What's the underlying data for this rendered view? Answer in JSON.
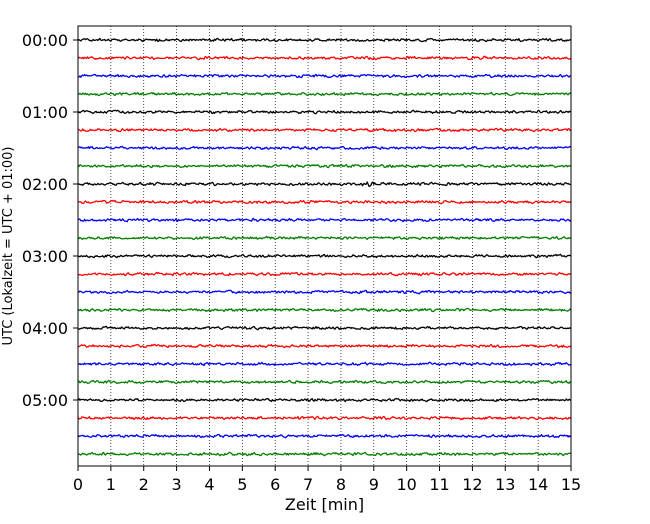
{
  "chart_data": {
    "type": "line",
    "xlabel": "Zeit  [min]",
    "ylabel": "UTC (Lokalzeit = UTC + 01:00)",
    "xlim": [
      0,
      15
    ],
    "x_ticks": [
      0,
      1,
      2,
      3,
      4,
      5,
      6,
      7,
      8,
      9,
      10,
      11,
      12,
      13,
      14,
      15
    ],
    "x_tick_labels": [
      "0",
      "1",
      "2",
      "3",
      "4",
      "5",
      "6",
      "7",
      "8",
      "9",
      "10",
      "11",
      "12",
      "13",
      "14",
      "15"
    ],
    "y_tick_labels": [
      "00:00",
      "01:00",
      "02:00",
      "03:00",
      "04:00",
      "05:00"
    ],
    "y_tick_trace_index": [
      0,
      4,
      8,
      12,
      16,
      20
    ],
    "trace_count": 24,
    "trace_minutes": 15,
    "trace_colors": [
      "#000000",
      "#ff0000",
      "#0000ff",
      "#008000"
    ],
    "x_grid": "dotted vertical lines at every minute",
    "grid": true,
    "traces": [
      {
        "start": "00:00",
        "color": "#000000"
      },
      {
        "start": "00:15",
        "color": "#ff0000"
      },
      {
        "start": "00:30",
        "color": "#0000ff"
      },
      {
        "start": "00:45",
        "color": "#008000"
      },
      {
        "start": "01:00",
        "color": "#000000"
      },
      {
        "start": "01:15",
        "color": "#ff0000"
      },
      {
        "start": "01:30",
        "color": "#0000ff"
      },
      {
        "start": "01:45",
        "color": "#008000"
      },
      {
        "start": "02:00",
        "color": "#000000"
      },
      {
        "start": "02:15",
        "color": "#ff0000"
      },
      {
        "start": "02:30",
        "color": "#0000ff"
      },
      {
        "start": "02:45",
        "color": "#008000"
      },
      {
        "start": "03:00",
        "color": "#000000"
      },
      {
        "start": "03:15",
        "color": "#ff0000"
      },
      {
        "start": "03:30",
        "color": "#0000ff"
      },
      {
        "start": "03:45",
        "color": "#008000"
      },
      {
        "start": "04:00",
        "color": "#000000"
      },
      {
        "start": "04:15",
        "color": "#ff0000"
      },
      {
        "start": "04:30",
        "color": "#0000ff"
      },
      {
        "start": "04:45",
        "color": "#008000"
      },
      {
        "start": "05:00",
        "color": "#000000"
      },
      {
        "start": "05:15",
        "color": "#ff0000"
      },
      {
        "start": "05:30",
        "color": "#0000ff"
      },
      {
        "start": "05:45",
        "color": "#008000"
      }
    ]
  }
}
